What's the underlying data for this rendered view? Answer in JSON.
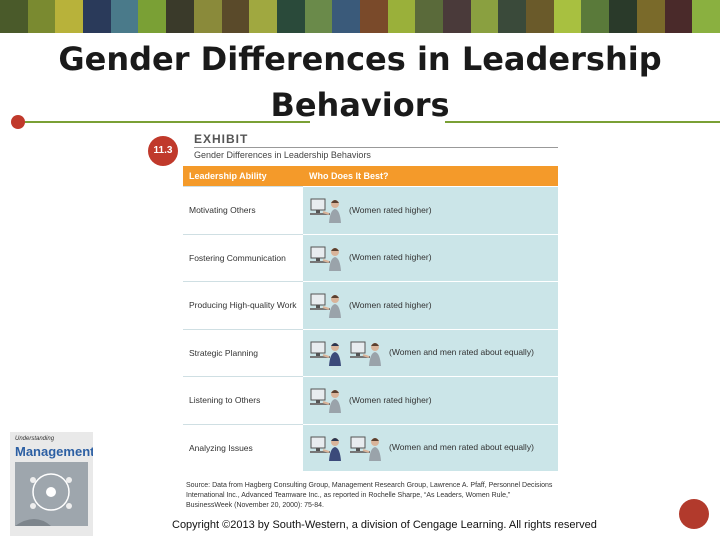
{
  "colors": {
    "top_band": [
      "#4a5a2a",
      "#7a8a30",
      "#b8b23a",
      "#2a3a5a",
      "#4a7a8a",
      "#7aa035",
      "#3a3a2a",
      "#8a8a3a",
      "#5a4a2a",
      "#a0a840",
      "#2a4a3a",
      "#6a8a4a",
      "#3a5a7a",
      "#7a4a2a",
      "#9ab03a",
      "#5a6a3a",
      "#4a3a3a",
      "#8aa040",
      "#3a4a3a",
      "#6a5a2a",
      "#a8c040",
      "#5a7a3a",
      "#2a3a2a",
      "#7a6a2a",
      "#4a2a2a",
      "#8ab040"
    ],
    "header": "#f49a2a",
    "cell": "#cbe5e8",
    "accent": "#c0392b",
    "rule": "#7aa035"
  },
  "slide": {
    "title_line1": "Gender Differences in Leadership",
    "title_line2": "Behaviors"
  },
  "exhibit": {
    "badge": "11.3",
    "label": "EXHIBIT",
    "subtitle": "Gender Differences in Leadership Behaviors",
    "headers": [
      "Leadership Ability",
      "Who Does It Best?"
    ],
    "rows": [
      {
        "ability": "Motivating Others",
        "who": "(Women rated higher)",
        "figures": [
          "woman-at-computer-icon"
        ]
      },
      {
        "ability": "Fostering Communication",
        "who": "(Women rated higher)",
        "figures": [
          "woman-at-computer-icon"
        ]
      },
      {
        "ability": "Producing High-quality Work",
        "who": "(Women rated higher)",
        "figures": [
          "woman-at-computer-icon"
        ]
      },
      {
        "ability": "Strategic Planning",
        "who": "(Women and men rated about equally)",
        "figures": [
          "man-at-computer-icon",
          "woman-at-computer-icon"
        ]
      },
      {
        "ability": "Listening to Others",
        "who": "(Women rated higher)",
        "figures": [
          "woman-at-computer-icon"
        ]
      },
      {
        "ability": "Analyzing Issues",
        "who": "(Women and men rated about equally)",
        "figures": [
          "man-at-computer-icon",
          "woman-at-computer-icon"
        ]
      }
    ]
  },
  "source_line1": "Source: Data from Hagberg Consulting Group, Management Research Group, Lawrence A. Pfaff, Personnel Decisions",
  "source_line2": "International Inc., Advanced Teamware Inc., as reported in Rochelle Sharpe, “As Leaders, Women Rule,”",
  "source_line3": "BusinessWeek (November 20, 2000): 75-84.",
  "cover": {
    "line1": "Understanding",
    "line2": "Management"
  },
  "copyright": "Copyright ©2013 by South-Western, a division of Cengage Learning. All rights reserved"
}
